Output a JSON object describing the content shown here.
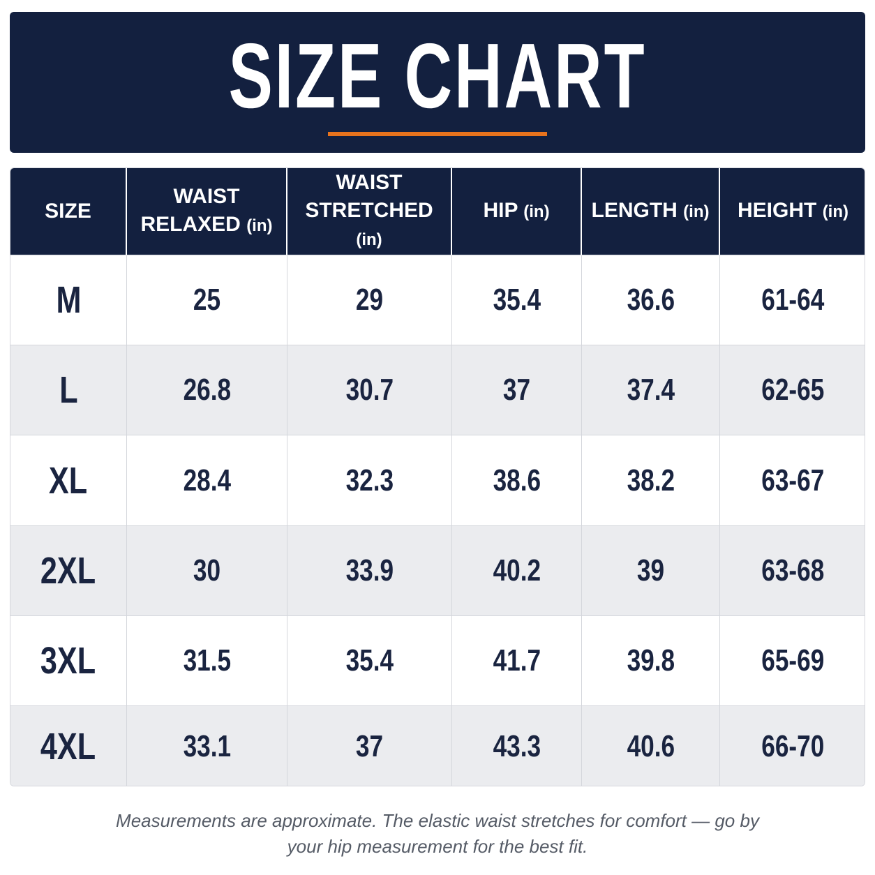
{
  "header": {
    "title": "SIZE CHART"
  },
  "table": {
    "columns": [
      {
        "label": "SIZE"
      },
      {
        "label": "WAIST RELAXED",
        "unit": "(in)"
      },
      {
        "label": "WAIST STRETCHED",
        "unit": "(in)"
      },
      {
        "label": "HIP",
        "unit": "(in)"
      },
      {
        "label": "LENGTH",
        "unit": "(in)"
      },
      {
        "label": "HEIGHT",
        "unit": "(in)"
      }
    ],
    "rows": [
      [
        "M",
        "25",
        "29",
        "35.4",
        "36.6",
        "61-64"
      ],
      [
        "L",
        "26.8",
        "30.7",
        "37",
        "37.4",
        "62-65"
      ],
      [
        "XL",
        "28.4",
        "32.3",
        "38.6",
        "38.2",
        "63-67"
      ],
      [
        "2XL",
        "30",
        "33.9",
        "40.2",
        "39",
        "63-68"
      ],
      [
        "3XL",
        "31.5",
        "35.4",
        "41.7",
        "39.8",
        "65-69"
      ],
      [
        "4XL",
        "33.1",
        "37",
        "43.3",
        "40.6",
        "66-70"
      ]
    ]
  },
  "footer": {
    "note": "Measurements are approximate. The elastic waist stretches for comfort — go by your hip measurement for the best fit."
  }
}
